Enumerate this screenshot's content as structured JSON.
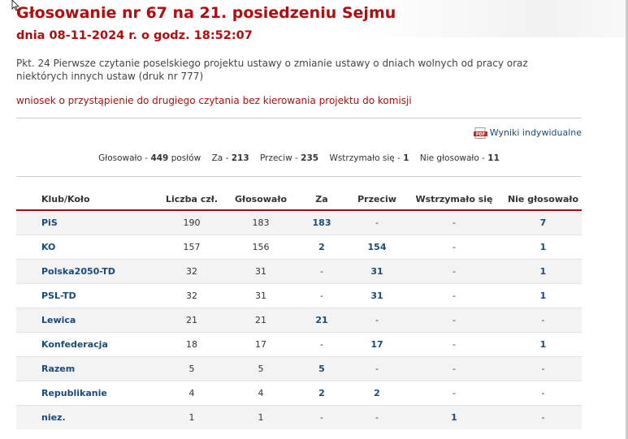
{
  "title": "Głosowanie nr 67 na 21. posiedzeniu Sejmu",
  "date": "dnia 08-11-2024 r. o godz. 18:52:07",
  "topic": "Pkt. 24 Pierwsze czytanie poselskiego projektu ustawy o zmianie ustawy o dniach wolnych od pracy oraz niektórych innych ustaw (druk nr 777)",
  "motion": "wniosek o przystąpienie do drugiego czytania bez kierowania projektu do komisji",
  "pdf": {
    "icon": "pdf-icon",
    "label": "Wyniki indywidualne"
  },
  "summary": {
    "glosowalo_label": "Głosowało -",
    "glosowalo": "449",
    "poslow_label": "posłów",
    "za_label": "Za -",
    "za": "213",
    "przeciw_label": "Przeciw -",
    "przeciw": "235",
    "wstrzymalo_label": "Wstrzymało się -",
    "wstrzymalo": "1",
    "nieglosowalo_label": "Nie głosowało -",
    "nieglosowalo": "11"
  },
  "table": {
    "headers": [
      "Klub/Koło",
      "Liczba czł.",
      "Głosowało",
      "Za",
      "Przeciw",
      "Wstrzymało się",
      "Nie głosowało"
    ],
    "rows": [
      [
        "PiS",
        "190",
        "183",
        "183",
        "-",
        "-",
        "7"
      ],
      [
        "KO",
        "157",
        "156",
        "2",
        "154",
        "-",
        "1"
      ],
      [
        "Polska2050-TD",
        "32",
        "31",
        "-",
        "31",
        "-",
        "1"
      ],
      [
        "PSL-TD",
        "32",
        "31",
        "-",
        "31",
        "-",
        "1"
      ],
      [
        "Lewica",
        "21",
        "21",
        "21",
        "-",
        "-",
        "-"
      ],
      [
        "Konfederacja",
        "18",
        "17",
        "-",
        "17",
        "-",
        "1"
      ],
      [
        "Razem",
        "5",
        "5",
        "5",
        "-",
        "-",
        "-"
      ],
      [
        "Republikanie",
        "4",
        "4",
        "2",
        "2",
        "-",
        "-"
      ],
      [
        "niez.",
        "1",
        "1",
        "-",
        "-",
        "1",
        "-"
      ]
    ]
  },
  "colors": {
    "accent_red": "#b00e0e",
    "link_blue": "#1a4a7a"
  }
}
